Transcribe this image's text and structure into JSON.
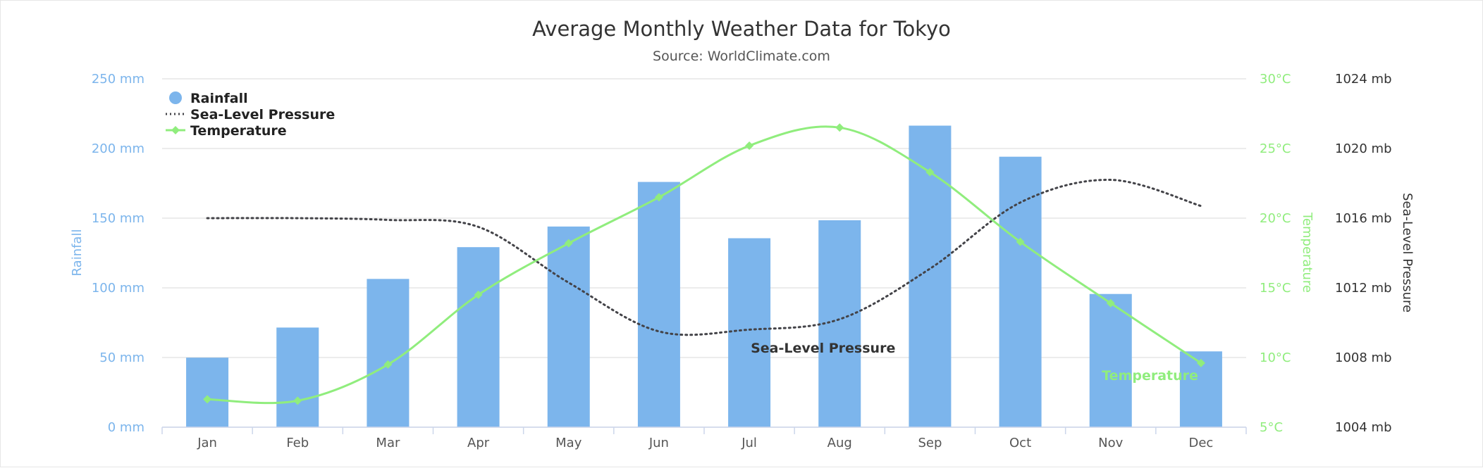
{
  "chart_data": {
    "type": "bar",
    "title": "Average Monthly Weather Data for Tokyo",
    "subtitle": "Source: WorldClimate.com",
    "categories": [
      "Jan",
      "Feb",
      "Mar",
      "Apr",
      "May",
      "Jun",
      "Jul",
      "Aug",
      "Sep",
      "Oct",
      "Nov",
      "Dec"
    ],
    "legend_position": "top-left",
    "grid": true,
    "series": [
      {
        "name": "Rainfall",
        "type": "bar",
        "axis": "rainfall",
        "color": "#7cb5ec",
        "values": [
          49.9,
          71.5,
          106.4,
          129.2,
          144.0,
          176.0,
          135.6,
          148.5,
          216.4,
          194.1,
          95.6,
          54.4
        ]
      },
      {
        "name": "Sea-Level Pressure",
        "type": "line",
        "axis": "pressure",
        "color": "#434348",
        "dash": "dotted",
        "values": [
          1016,
          1016,
          1015.9,
          1015.5,
          1012.3,
          1009.5,
          1009.6,
          1010.2,
          1013.1,
          1016.9,
          1018.2,
          1016.7
        ],
        "label": "Sea-Level Pressure"
      },
      {
        "name": "Temperature",
        "type": "spline",
        "axis": "temperature",
        "color": "#90ed7d",
        "values": [
          7.0,
          6.9,
          9.5,
          14.5,
          18.2,
          21.5,
          25.2,
          26.5,
          23.3,
          18.3,
          13.9,
          9.6
        ],
        "label": "Temperature"
      }
    ],
    "axes": {
      "rainfall": {
        "title": "Rainfall",
        "color": "#7cb5ec",
        "ylim": [
          0,
          250
        ],
        "ticks": [
          0,
          50,
          100,
          150,
          200,
          250
        ],
        "tick_labels": [
          "0 mm",
          "50 mm",
          "100 mm",
          "150 mm",
          "200 mm",
          "250 mm"
        ]
      },
      "temperature": {
        "title": "Temperature",
        "color": "#90ed7d",
        "ylim": [
          5,
          30
        ],
        "ticks": [
          5,
          10,
          15,
          20,
          25,
          30
        ],
        "tick_labels": [
          "5°C",
          "10°C",
          "15°C",
          "20°C",
          "25°C",
          "30°C"
        ]
      },
      "pressure": {
        "title": "Sea-Level Pressure",
        "color": "#434348",
        "ylim": [
          1004,
          1024
        ],
        "ticks": [
          1004,
          1008,
          1012,
          1016,
          1020,
          1024
        ],
        "tick_labels": [
          "1004 mb",
          "1008 mb",
          "1012 mb",
          "1016 mb",
          "1020 mb",
          "1024 mb"
        ]
      }
    }
  }
}
